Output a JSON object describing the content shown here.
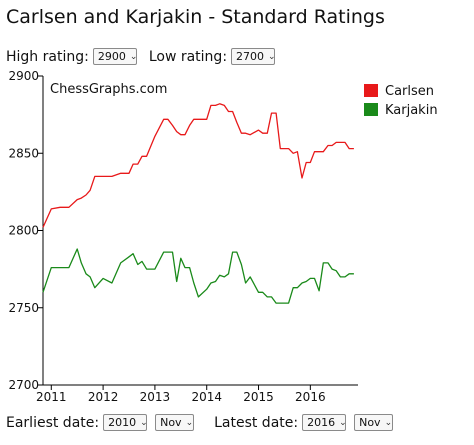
{
  "title": "Carlsen and Karjakin - Standard Ratings",
  "controls": {
    "high_rating_label": "High rating:",
    "high_rating_value": "2900",
    "low_rating_label": "Low rating:",
    "low_rating_value": "2700",
    "earliest_date_label": "Earliest date:",
    "earliest_year": "2010",
    "earliest_month": "Nov",
    "latest_date_label": "Latest date:",
    "latest_year": "2016",
    "latest_month": "Nov",
    "chevron": "⌄"
  },
  "watermark": "ChessGraphs.com",
  "chart_data": {
    "type": "line",
    "ylim": [
      2700,
      2900
    ],
    "xlim": [
      2010.84,
      2016.92
    ],
    "y_ticks": [
      2700,
      2750,
      2800,
      2850,
      2900
    ],
    "x_ticks": [
      2011,
      2012,
      2013,
      2014,
      2015,
      2016
    ],
    "x_tick_labels": [
      "2011",
      "2012",
      "2013",
      "2014",
      "2015",
      "2016"
    ],
    "grid": false,
    "legend_position": "top-right",
    "series": [
      {
        "name": "Carlsen",
        "color": "#e8191a",
        "x": [
          2010.84,
          2011.0,
          2011.17,
          2011.34,
          2011.5,
          2011.58,
          2011.67,
          2011.75,
          2011.84,
          2012.0,
          2012.17,
          2012.34,
          2012.5,
          2012.58,
          2012.67,
          2012.75,
          2012.84,
          2013.0,
          2013.17,
          2013.25,
          2013.34,
          2013.42,
          2013.5,
          2013.58,
          2013.67,
          2013.75,
          2013.84,
          2014.0,
          2014.08,
          2014.17,
          2014.25,
          2014.34,
          2014.42,
          2014.5,
          2014.58,
          2014.67,
          2014.75,
          2014.84,
          2015.0,
          2015.08,
          2015.17,
          2015.25,
          2015.34,
          2015.42,
          2015.5,
          2015.58,
          2015.67,
          2015.75,
          2015.84,
          2015.92,
          2016.0,
          2016.08,
          2016.17,
          2016.25,
          2016.34,
          2016.42,
          2016.5,
          2016.58,
          2016.67,
          2016.75,
          2016.84
        ],
        "values": [
          2802,
          2814,
          2815,
          2815,
          2820,
          2821,
          2823,
          2826,
          2835,
          2835,
          2835,
          2837,
          2837,
          2843,
          2843,
          2848,
          2848,
          2861,
          2872,
          2872,
          2868,
          2864,
          2862,
          2862,
          2868,
          2872,
          2872,
          2872,
          2881,
          2881,
          2882,
          2881,
          2877,
          2877,
          2870,
          2863,
          2863,
          2862,
          2865,
          2863,
          2863,
          2876,
          2876,
          2853,
          2853,
          2853,
          2850,
          2851,
          2834,
          2844,
          2844,
          2851,
          2851,
          2851,
          2855,
          2855,
          2857,
          2857,
          2857,
          2853,
          2853
        ]
      },
      {
        "name": "Karjakin",
        "color": "#1a8a1a",
        "x": [
          2010.84,
          2011.0,
          2011.17,
          2011.34,
          2011.5,
          2011.58,
          2011.67,
          2011.75,
          2011.84,
          2012.0,
          2012.17,
          2012.34,
          2012.5,
          2012.58,
          2012.67,
          2012.75,
          2012.84,
          2013.0,
          2013.17,
          2013.25,
          2013.34,
          2013.42,
          2013.5,
          2013.58,
          2013.67,
          2013.75,
          2013.84,
          2014.0,
          2014.08,
          2014.17,
          2014.25,
          2014.34,
          2014.42,
          2014.5,
          2014.58,
          2014.67,
          2014.75,
          2014.84,
          2015.0,
          2015.08,
          2015.17,
          2015.25,
          2015.34,
          2015.42,
          2015.5,
          2015.58,
          2015.67,
          2015.75,
          2015.84,
          2015.92,
          2016.0,
          2016.08,
          2016.17,
          2016.25,
          2016.34,
          2016.42,
          2016.5,
          2016.58,
          2016.67,
          2016.75,
          2016.84
        ],
        "values": [
          2760,
          2776,
          2776,
          2776,
          2788,
          2779,
          2772,
          2770,
          2763,
          2769,
          2766,
          2779,
          2783,
          2785,
          2778,
          2780,
          2775,
          2775,
          2786,
          2786,
          2786,
          2767,
          2782,
          2776,
          2776,
          2766,
          2757,
          2762,
          2766,
          2767,
          2771,
          2770,
          2772,
          2786,
          2786,
          2778,
          2766,
          2770,
          2760,
          2760,
          2757,
          2757,
          2753,
          2753,
          2753,
          2753,
          2763,
          2763,
          2766,
          2767,
          2769,
          2769,
          2761,
          2779,
          2779,
          2775,
          2774,
          2770,
          2770,
          2772,
          2772
        ]
      }
    ]
  }
}
